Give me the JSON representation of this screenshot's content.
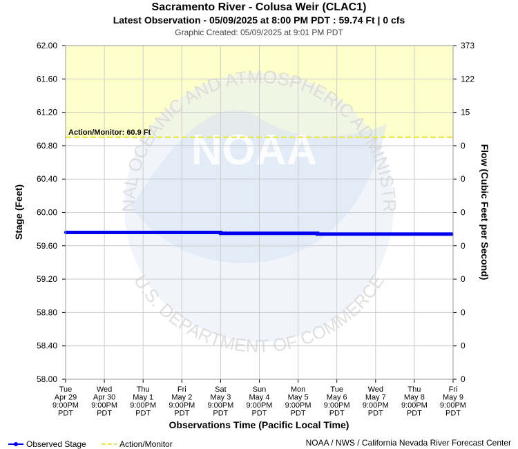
{
  "header": {
    "title": "Sacramento River - Colusa Weir (CLAC1)",
    "subtitle": "Latest Observation - 05/09/2025 at 8:00 PM PDT : 59.74 Ft | 0 cfs",
    "created": "Graphic Created: 05/09/2025 at 9:01 PM PDT"
  },
  "footer": {
    "legend_observed": "Observed Stage",
    "legend_action": "Action/Monitor",
    "credit": "NOAA / NWS / California Nevada River Forecast Center"
  },
  "colors": {
    "observed": "#0000ee",
    "action": "#e8e84a",
    "action_zone": "#ffffcc",
    "grid": "#cccccc",
    "watermark": "#dfe8f5"
  },
  "chart_data": {
    "type": "line",
    "ylabel": "Stage (Feet)",
    "y2label": "Flow (Cubic Feet per Second)",
    "xlabel": "Observations Time (Pacific Local Time)",
    "ylim": [
      58.0,
      62.0
    ],
    "yticks": [
      "62.00",
      "61.60",
      "61.20",
      "60.80",
      "60.40",
      "60.00",
      "59.60",
      "59.20",
      "58.80",
      "58.40",
      "58.00"
    ],
    "y2ticks": [
      "373",
      "122",
      "15",
      "0",
      "0",
      "0",
      "0",
      "0",
      "0",
      "0",
      "0"
    ],
    "xticks": [
      [
        "Tue",
        "Apr 29",
        "9:00PM",
        "PDT"
      ],
      [
        "Wed",
        "Apr 30",
        "9:00PM",
        "PDT"
      ],
      [
        "Thu",
        "May 1",
        "9:00PM",
        "PDT"
      ],
      [
        "Fri",
        "May 2",
        "9:00PM",
        "PDT"
      ],
      [
        "Sat",
        "May 3",
        "9:00PM",
        "PDT"
      ],
      [
        "Sun",
        "May 4",
        "9:00PM",
        "PDT"
      ],
      [
        "Mon",
        "May 5",
        "9:00PM",
        "PDT"
      ],
      [
        "Tue",
        "May 6",
        "9:00PM",
        "PDT"
      ],
      [
        "Wed",
        "May 7",
        "9:00PM",
        "PDT"
      ],
      [
        "Thu",
        "May 8",
        "9:00PM",
        "PDT"
      ],
      [
        "Fri",
        "May 9",
        "9:00PM",
        "PDT"
      ]
    ],
    "action_label": "Action/Monitor: 60.9 Ft",
    "action_value": 60.9,
    "series": [
      {
        "name": "Observed Stage",
        "x_days": [
          0,
          2.0,
          2.0,
          4.0,
          4.0,
          6.5,
          6.5,
          7.6,
          7.6,
          10.0
        ],
        "values": [
          59.76,
          59.76,
          59.76,
          59.76,
          59.75,
          59.75,
          59.74,
          59.74,
          59.74,
          59.74
        ]
      }
    ],
    "watermark": {
      "outer": "NATIONAL OCEANIC AND ATMOSPHERIC ADMINISTRATION",
      "inner": "U.S. DEPARTMENT OF COMMERCE",
      "center": "NOAA"
    }
  }
}
